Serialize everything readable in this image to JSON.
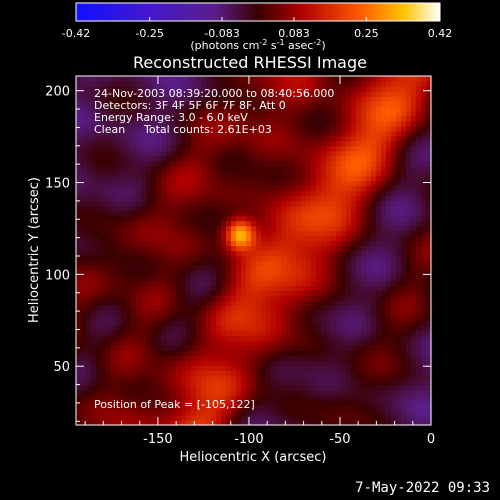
{
  "colorbar": {
    "ticks": [
      -0.42,
      -0.25,
      -0.083,
      0.083,
      0.25,
      0.42
    ],
    "tick_labels": [
      "-0.42",
      "-0.25",
      "-0.083",
      "0.083",
      "0.25",
      "0.42"
    ],
    "units_prefix": "(photons cm",
    "units_exp1": "-2",
    "units_mid": " s",
    "units_exp2": "-1",
    "units_mid2": " asec",
    "units_exp3": "-2",
    "units_suffix": ")",
    "range": [
      -0.42,
      0.42
    ]
  },
  "chart_data": {
    "type": "heatmap",
    "title": "Reconstructed RHESSI Image",
    "xlabel": "Heliocentric X (arcsec)",
    "ylabel": "Heliocentric Y (arcsec)",
    "xlim": [
      -195,
      0
    ],
    "ylim": [
      18,
      208
    ],
    "xticks": [
      -150,
      -100,
      -50,
      0
    ],
    "yticks": [
      50,
      100,
      150,
      200
    ],
    "xtick_labels": [
      "-150",
      "-100",
      "-50",
      "0"
    ],
    "ytick_labels": [
      "50",
      "100",
      "150",
      "200"
    ],
    "peak": [
      -105,
      122
    ],
    "annotations": {
      "time_range": "24-Nov-2003 08:39:20.000 to 08:40:56.000",
      "detectors": "Detectors: 3F 4F 5F 6F 7F 8F, Att 0",
      "energy": "Energy Range: 3.0 - 6.0 keV",
      "method": "Clean",
      "counts": "Total counts: 2.61E+03",
      "peak_label": "Position of Peak = [-105,122]"
    },
    "colormap": "hot-blue",
    "value_range": [
      -0.42,
      0.42
    ]
  },
  "footer": {
    "date": "7-May-2022 09:33"
  }
}
